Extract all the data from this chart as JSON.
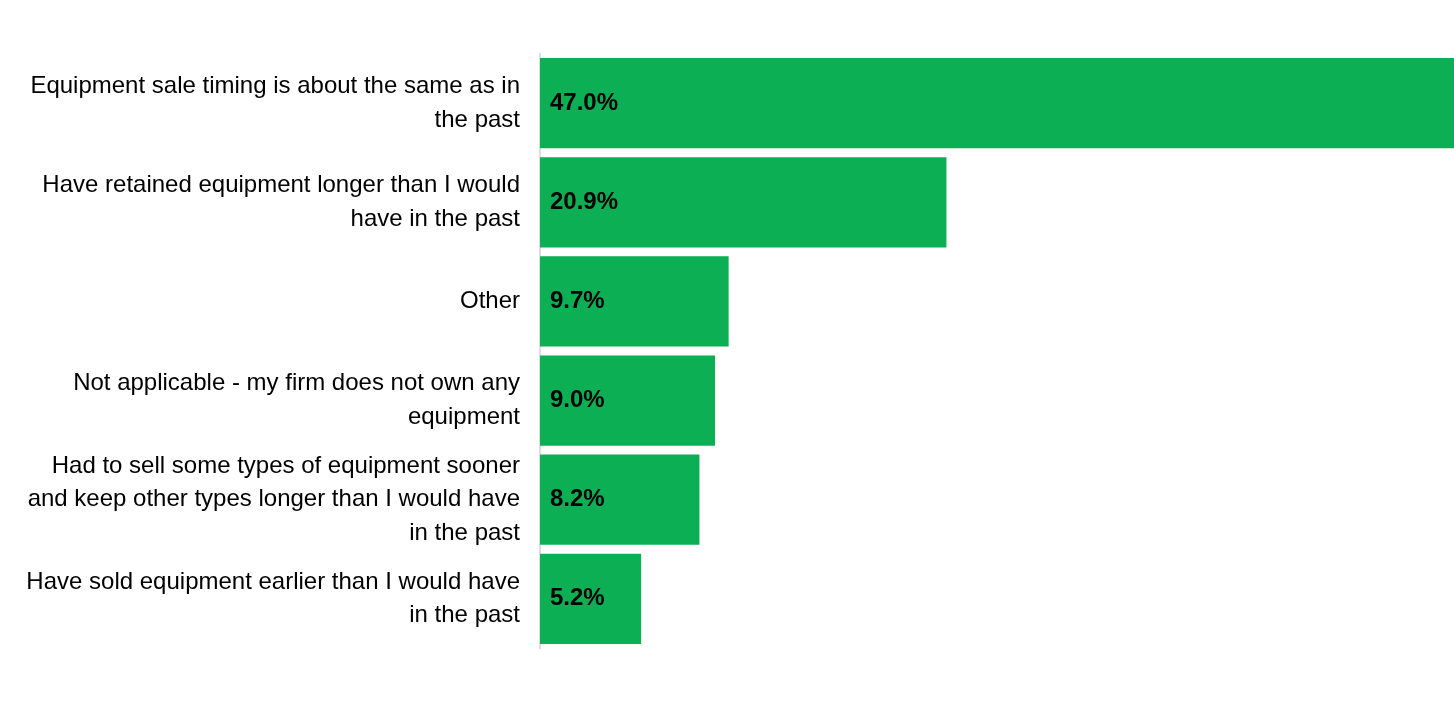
{
  "chart_data": {
    "type": "bar",
    "orientation": "horizontal",
    "categories": [
      "Equipment sale timing is about the same as in the past",
      "Have retained equipment longer than I would have in the past",
      "Other",
      "Not applicable - my firm does not own any equipment",
      "Had to sell some types of equipment sooner and keep other types longer than I would have in the past",
      "Have sold equipment earlier than I would have in the past"
    ],
    "values": [
      47.0,
      20.9,
      9.7,
      9.0,
      8.2,
      5.2
    ],
    "value_labels": [
      "47.0%",
      "20.9%",
      "9.7%",
      "9.0%",
      "8.2%",
      "5.2%"
    ],
    "color": "#0daf54",
    "xlim": [
      0,
      47
    ],
    "tick_labels": "y",
    "grid": false,
    "legend": false
  }
}
